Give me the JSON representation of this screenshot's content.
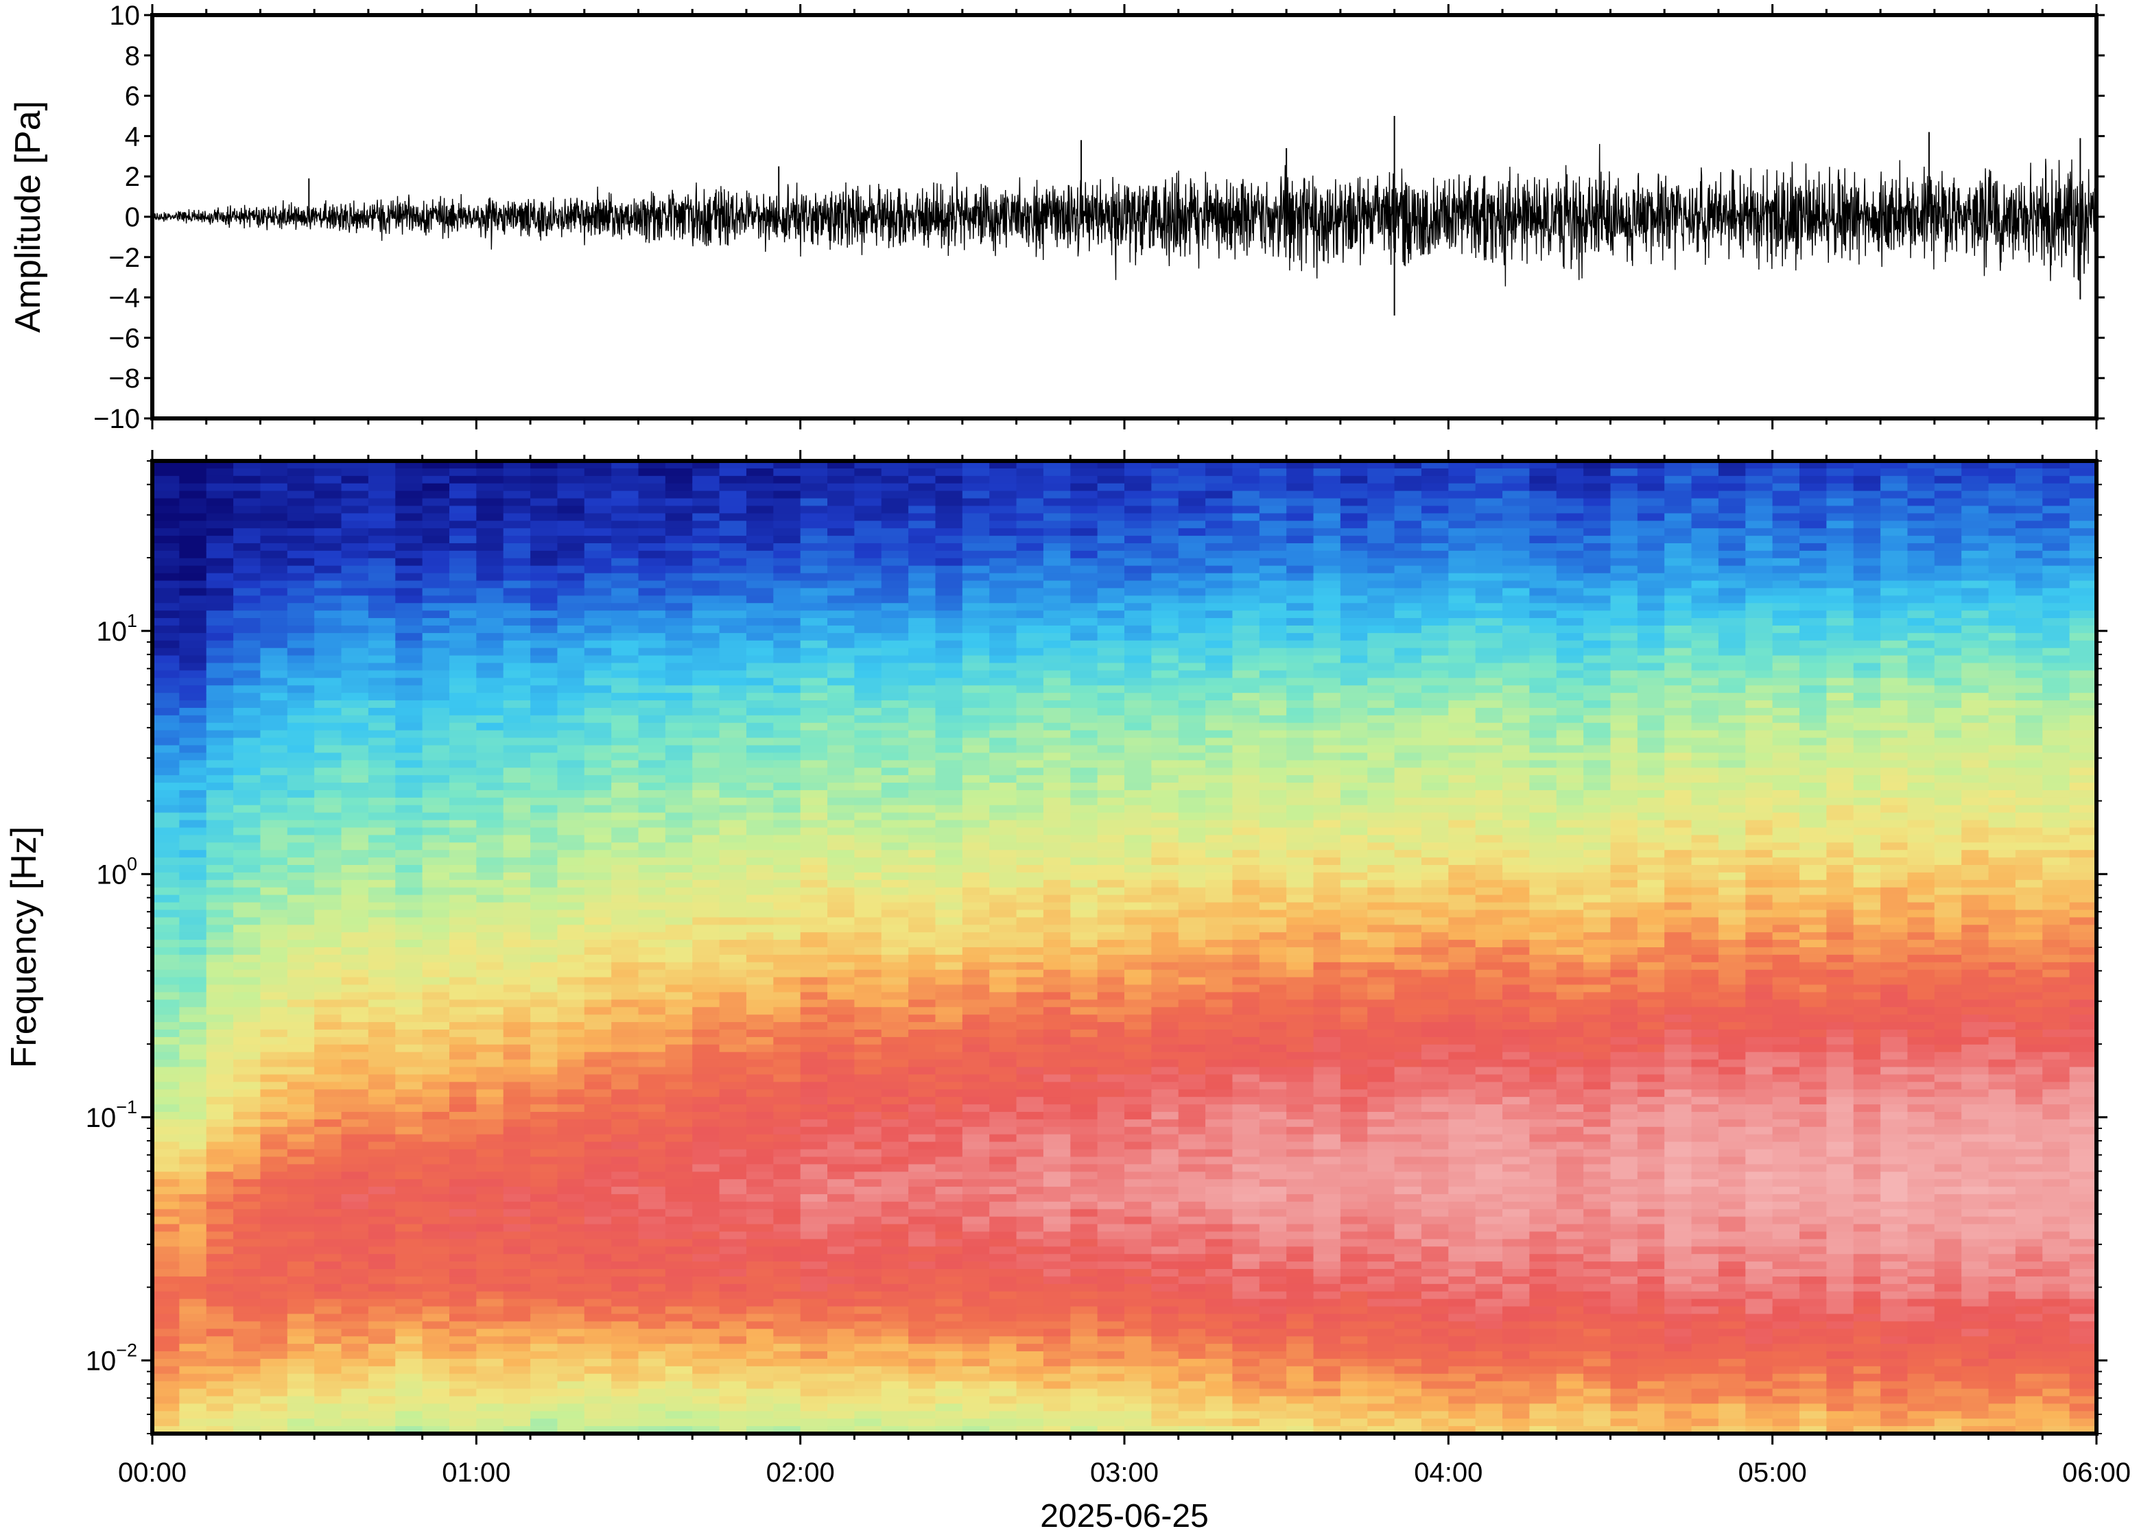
{
  "chart_data": [
    {
      "type": "line",
      "panel": "waveform",
      "ylabel": "Amplitude [Pa]",
      "ylim": [
        -10,
        10
      ],
      "yticks": [
        -10,
        -8,
        -6,
        -4,
        -2,
        0,
        2,
        4,
        6,
        8,
        10
      ],
      "ytick_labels": [
        "−10",
        "−8",
        "−6",
        "−4",
        "−2",
        "0",
        "2",
        "4",
        "6",
        "8",
        "10"
      ],
      "xlim": [
        "2025-06-25T00:00",
        "2025-06-25T06:00"
      ],
      "envelope": {
        "time": [
          "00:00",
          "00:30",
          "01:00",
          "01:30",
          "02:00",
          "02:30",
          "03:00",
          "03:30",
          "04:00",
          "04:30",
          "05:00",
          "05:30",
          "06:00"
        ],
        "upper": [
          0.3,
          1.0,
          1.3,
          1.6,
          2.0,
          2.2,
          2.6,
          2.8,
          3.2,
          3.0,
          3.2,
          3.4,
          3.5
        ],
        "lower": [
          -0.3,
          -1.0,
          -1.3,
          -1.6,
          -2.2,
          -2.3,
          -2.7,
          -3.2,
          -3.4,
          -3.0,
          -3.2,
          -3.4,
          -3.6
        ]
      },
      "peaks": [
        {
          "time": "00:29",
          "value": 1.9
        },
        {
          "time": "01:56",
          "value": 2.5
        },
        {
          "time": "02:52",
          "value": 3.8
        },
        {
          "time": "03:30",
          "value": 3.4
        },
        {
          "time": "03:50",
          "value": 5.0
        },
        {
          "time": "03:50",
          "value": -4.9
        },
        {
          "time": "05:29",
          "value": 4.2
        },
        {
          "time": "05:57",
          "value": 3.9
        },
        {
          "time": "05:57",
          "value": -4.1
        }
      ]
    },
    {
      "type": "heatmap",
      "panel": "spectrogram",
      "ylabel": "Frequency [Hz]",
      "yscale": "log",
      "ylim": [
        0.005,
        50
      ],
      "ytick_labels": [
        {
          "value": 10,
          "base": "10",
          "exp": "1"
        },
        {
          "value": 1,
          "base": "10",
          "exp": "0"
        },
        {
          "value": 0.1,
          "base": "10",
          "exp": "−1"
        },
        {
          "value": 0.01,
          "base": "10",
          "exp": "−2"
        }
      ],
      "xlim": [
        "2025-06-25T00:00",
        "2025-06-25T06:00"
      ],
      "xticks": [
        "00:00",
        "01:00",
        "02:00",
        "03:00",
        "04:00",
        "05:00",
        "06:00"
      ],
      "xdate": "2025-06-25",
      "colormap": [
        "#0a0a78",
        "#1e3cc8",
        "#2a8ce6",
        "#3cc8f0",
        "#78e6c8",
        "#c8f096",
        "#f0e682",
        "#fab45a",
        "#f06e50",
        "#eb5a5a",
        "#f09696",
        "#f5b4b4"
      ],
      "relative_power": {
        "time": [
          "00:00",
          "00:30",
          "01:00",
          "01:30",
          "02:00",
          "02:30",
          "03:00",
          "03:30",
          "04:00",
          "04:30",
          "05:00",
          "05:30",
          "06:00"
        ],
        "frequency": [
          0.005,
          0.01,
          0.02,
          0.05,
          0.1,
          0.2,
          0.5,
          1,
          2,
          5,
          10,
          20,
          50
        ],
        "level": [
          [
            0.55,
            0.7,
            0.72,
            0.62,
            0.45,
            0.4,
            0.35,
            0.3,
            0.25,
            0.12,
            0.02,
            0.0,
            0.0
          ],
          [
            0.45,
            0.6,
            0.75,
            0.78,
            0.66,
            0.58,
            0.48,
            0.4,
            0.34,
            0.26,
            0.16,
            0.06,
            0.02
          ],
          [
            0.45,
            0.6,
            0.75,
            0.8,
            0.7,
            0.6,
            0.5,
            0.42,
            0.36,
            0.28,
            0.18,
            0.07,
            0.02
          ],
          [
            0.42,
            0.6,
            0.76,
            0.82,
            0.75,
            0.66,
            0.54,
            0.46,
            0.4,
            0.31,
            0.2,
            0.08,
            0.03
          ],
          [
            0.45,
            0.62,
            0.78,
            0.86,
            0.8,
            0.72,
            0.58,
            0.5,
            0.42,
            0.34,
            0.22,
            0.1,
            0.04
          ],
          [
            0.45,
            0.64,
            0.78,
            0.88,
            0.83,
            0.75,
            0.6,
            0.52,
            0.44,
            0.36,
            0.24,
            0.12,
            0.05
          ],
          [
            0.5,
            0.66,
            0.8,
            0.9,
            0.86,
            0.77,
            0.62,
            0.54,
            0.46,
            0.38,
            0.26,
            0.14,
            0.06
          ],
          [
            0.55,
            0.7,
            0.82,
            0.92,
            0.88,
            0.78,
            0.64,
            0.55,
            0.47,
            0.39,
            0.28,
            0.16,
            0.07
          ],
          [
            0.58,
            0.72,
            0.84,
            0.93,
            0.9,
            0.8,
            0.66,
            0.56,
            0.48,
            0.4,
            0.29,
            0.17,
            0.07
          ],
          [
            0.6,
            0.74,
            0.85,
            0.94,
            0.91,
            0.81,
            0.67,
            0.57,
            0.49,
            0.41,
            0.3,
            0.18,
            0.08
          ],
          [
            0.6,
            0.74,
            0.86,
            0.95,
            0.92,
            0.82,
            0.68,
            0.58,
            0.5,
            0.42,
            0.31,
            0.18,
            0.08
          ],
          [
            0.62,
            0.76,
            0.87,
            0.96,
            0.93,
            0.83,
            0.69,
            0.59,
            0.51,
            0.43,
            0.32,
            0.19,
            0.09
          ],
          [
            0.62,
            0.76,
            0.87,
            0.96,
            0.93,
            0.83,
            0.69,
            0.59,
            0.51,
            0.43,
            0.32,
            0.19,
            0.09
          ]
        ]
      }
    }
  ]
}
